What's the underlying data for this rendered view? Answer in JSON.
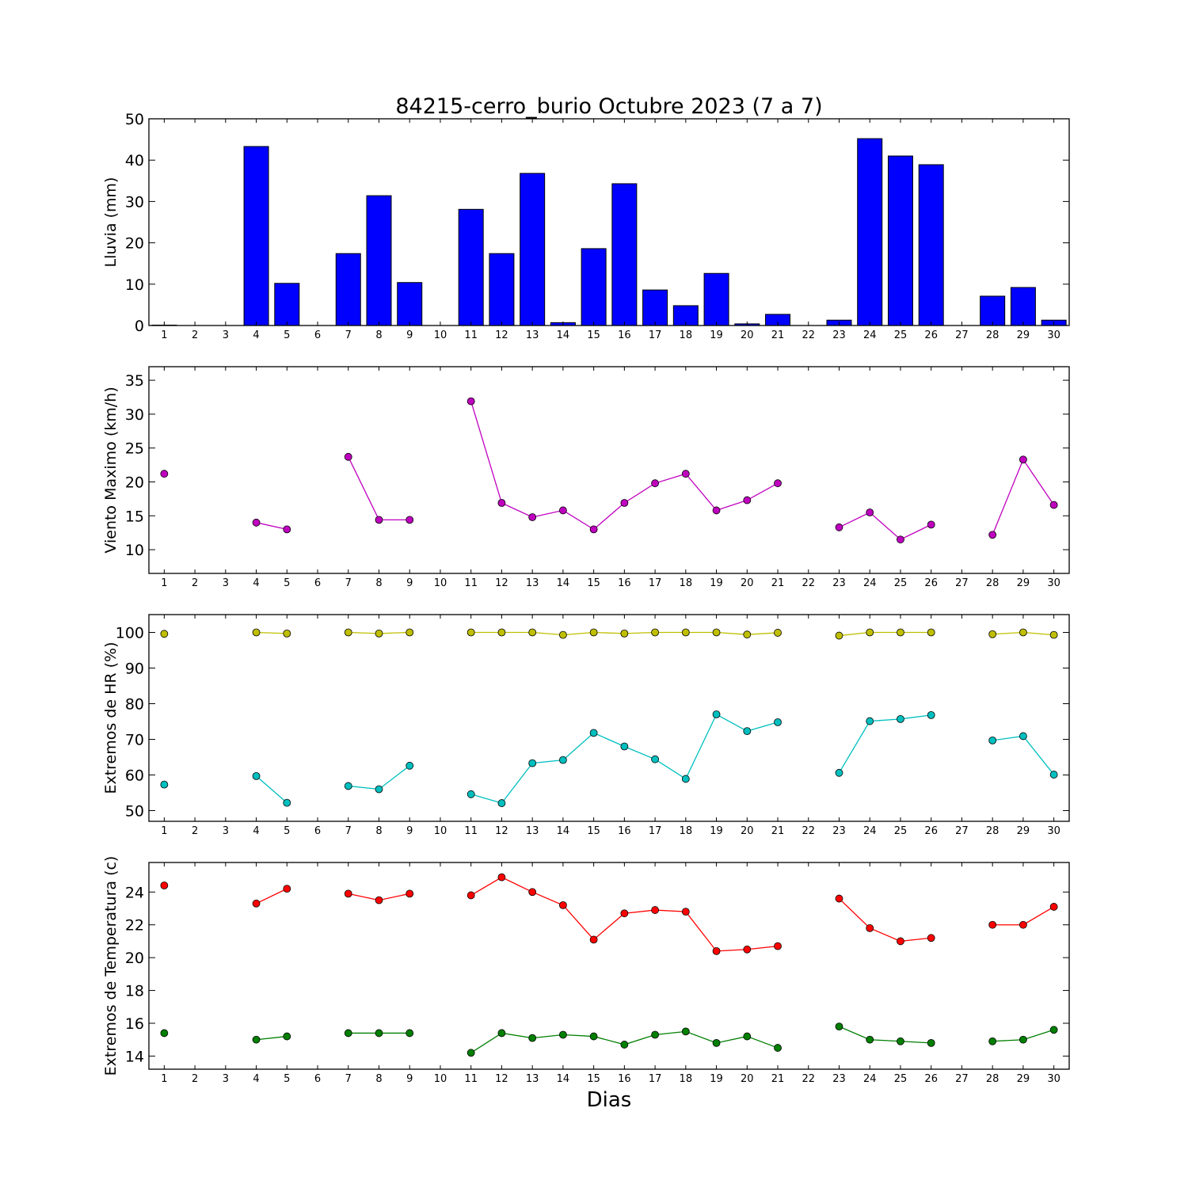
{
  "figure": {
    "title": "84215-cerro_burio Octubre 2023  (7 a 7)",
    "xlabel": "Dias"
  },
  "chart_data": [
    {
      "id": "lluvia",
      "type": "bar",
      "ylabel": "Lluvia (mm)",
      "xlim": [
        0.5,
        30.5
      ],
      "ylim": [
        0,
        50
      ],
      "yticks": [
        0,
        10,
        20,
        30,
        40,
        50
      ],
      "xticks": [
        1,
        2,
        3,
        4,
        5,
        6,
        7,
        8,
        9,
        10,
        11,
        12,
        13,
        14,
        15,
        16,
        17,
        18,
        19,
        20,
        21,
        22,
        23,
        24,
        25,
        26,
        27,
        28,
        29,
        30
      ],
      "color": "#0000ff",
      "series": [
        {
          "x": [
            1,
            2,
            3,
            4,
            5,
            6,
            7,
            8,
            9,
            10,
            11,
            12,
            13,
            14,
            15,
            16,
            17,
            18,
            19,
            20,
            21,
            22,
            23,
            24,
            25,
            26,
            27,
            28,
            29,
            30
          ],
          "values": [
            0.1,
            0,
            0,
            43.3,
            10.2,
            0,
            17.4,
            31.4,
            10.4,
            0,
            28.1,
            17.4,
            36.8,
            0.7,
            18.6,
            34.3,
            8.6,
            4.8,
            12.6,
            0.4,
            2.7,
            0,
            1.3,
            45.2,
            41.0,
            38.9,
            0,
            7.1,
            9.2,
            1.3
          ]
        }
      ]
    },
    {
      "id": "viento",
      "type": "line",
      "ylabel": "Viento Maximo (km/h)",
      "xlim": [
        0.5,
        30.5
      ],
      "ylim": [
        6.5,
        37
      ],
      "yticks": [
        10,
        15,
        20,
        25,
        30,
        35
      ],
      "xticks": [
        1,
        2,
        3,
        4,
        5,
        6,
        7,
        8,
        9,
        10,
        11,
        12,
        13,
        14,
        15,
        16,
        17,
        18,
        19,
        20,
        21,
        22,
        23,
        24,
        25,
        26,
        27,
        28,
        29,
        30
      ],
      "series": [
        {
          "color": "#bf00bf",
          "x": [
            1,
            2,
            3,
            4,
            5,
            6,
            7,
            8,
            9,
            10,
            11,
            12,
            13,
            14,
            15,
            16,
            17,
            18,
            19,
            20,
            21,
            22,
            23,
            24,
            25,
            26,
            27,
            28,
            29,
            30
          ],
          "values": [
            21.2,
            null,
            null,
            14.0,
            13.0,
            null,
            23.7,
            14.4,
            14.4,
            null,
            31.9,
            16.9,
            14.8,
            15.8,
            13.0,
            16.9,
            19.8,
            21.2,
            15.8,
            17.3,
            19.8,
            null,
            13.3,
            15.5,
            11.5,
            13.7,
            null,
            12.2,
            23.3,
            16.6
          ]
        }
      ]
    },
    {
      "id": "humedad",
      "type": "line",
      "ylabel": "Extremos de HR (%)",
      "xlim": [
        0.5,
        30.5
      ],
      "ylim": [
        47,
        105
      ],
      "yticks": [
        50,
        60,
        70,
        80,
        90,
        100
      ],
      "xticks": [
        1,
        2,
        3,
        4,
        5,
        6,
        7,
        8,
        9,
        10,
        11,
        12,
        13,
        14,
        15,
        16,
        17,
        18,
        19,
        20,
        21,
        22,
        23,
        24,
        25,
        26,
        27,
        28,
        29,
        30
      ],
      "series": [
        {
          "color": "#bfbf00",
          "x": [
            1,
            2,
            3,
            4,
            5,
            6,
            7,
            8,
            9,
            10,
            11,
            12,
            13,
            14,
            15,
            16,
            17,
            18,
            19,
            20,
            21,
            22,
            23,
            24,
            25,
            26,
            27,
            28,
            29,
            30
          ],
          "values": [
            99.6,
            null,
            null,
            100.0,
            99.7,
            null,
            100.0,
            99.7,
            100.0,
            null,
            100.0,
            100.0,
            100.0,
            99.3,
            100.0,
            99.7,
            100.0,
            100.0,
            100.0,
            99.4,
            99.9,
            null,
            99.1,
            100.0,
            100.0,
            100.0,
            null,
            99.5,
            100.0,
            99.3
          ]
        },
        {
          "color": "#00bfbf",
          "x": [
            1,
            2,
            3,
            4,
            5,
            6,
            7,
            8,
            9,
            10,
            11,
            12,
            13,
            14,
            15,
            16,
            17,
            18,
            19,
            20,
            21,
            22,
            23,
            24,
            25,
            26,
            27,
            28,
            29,
            30
          ],
          "values": [
            57.3,
            null,
            null,
            59.7,
            52.2,
            null,
            56.9,
            56.0,
            62.6,
            null,
            54.6,
            52.1,
            63.3,
            64.2,
            71.8,
            68.0,
            64.4,
            58.9,
            77.0,
            72.3,
            74.8,
            null,
            60.6,
            75.1,
            75.7,
            76.8,
            null,
            69.7,
            70.9,
            60.1
          ]
        }
      ]
    },
    {
      "id": "temperatura",
      "type": "line",
      "ylabel": "Extremos de Temperatura (c)",
      "xlim": [
        0.5,
        30.5
      ],
      "ylim": [
        13.2,
        25.8
      ],
      "yticks": [
        14,
        16,
        18,
        20,
        22,
        24
      ],
      "xticks": [
        1,
        2,
        3,
        4,
        5,
        6,
        7,
        8,
        9,
        10,
        11,
        12,
        13,
        14,
        15,
        16,
        17,
        18,
        19,
        20,
        21,
        22,
        23,
        24,
        25,
        26,
        27,
        28,
        29,
        30
      ],
      "series": [
        {
          "color": "#ff0000",
          "x": [
            1,
            2,
            3,
            4,
            5,
            6,
            7,
            8,
            9,
            10,
            11,
            12,
            13,
            14,
            15,
            16,
            17,
            18,
            19,
            20,
            21,
            22,
            23,
            24,
            25,
            26,
            27,
            28,
            29,
            30
          ],
          "values": [
            24.4,
            null,
            null,
            23.3,
            24.2,
            null,
            23.9,
            23.5,
            23.9,
            null,
            23.8,
            24.9,
            24.0,
            23.2,
            21.1,
            22.7,
            22.9,
            22.8,
            20.4,
            20.5,
            20.7,
            null,
            23.6,
            21.8,
            21.0,
            21.2,
            null,
            22.0,
            22.0,
            23.1
          ]
        },
        {
          "color": "#007f00",
          "x": [
            1,
            2,
            3,
            4,
            5,
            6,
            7,
            8,
            9,
            10,
            11,
            12,
            13,
            14,
            15,
            16,
            17,
            18,
            19,
            20,
            21,
            22,
            23,
            24,
            25,
            26,
            27,
            28,
            29,
            30
          ],
          "values": [
            15.4,
            null,
            null,
            15.0,
            15.2,
            null,
            15.4,
            15.4,
            15.4,
            null,
            14.2,
            15.4,
            15.1,
            15.3,
            15.2,
            14.7,
            15.3,
            15.5,
            14.8,
            15.2,
            14.5,
            null,
            15.8,
            15.0,
            14.9,
            14.8,
            null,
            14.9,
            15.0,
            15.6
          ]
        }
      ]
    }
  ]
}
